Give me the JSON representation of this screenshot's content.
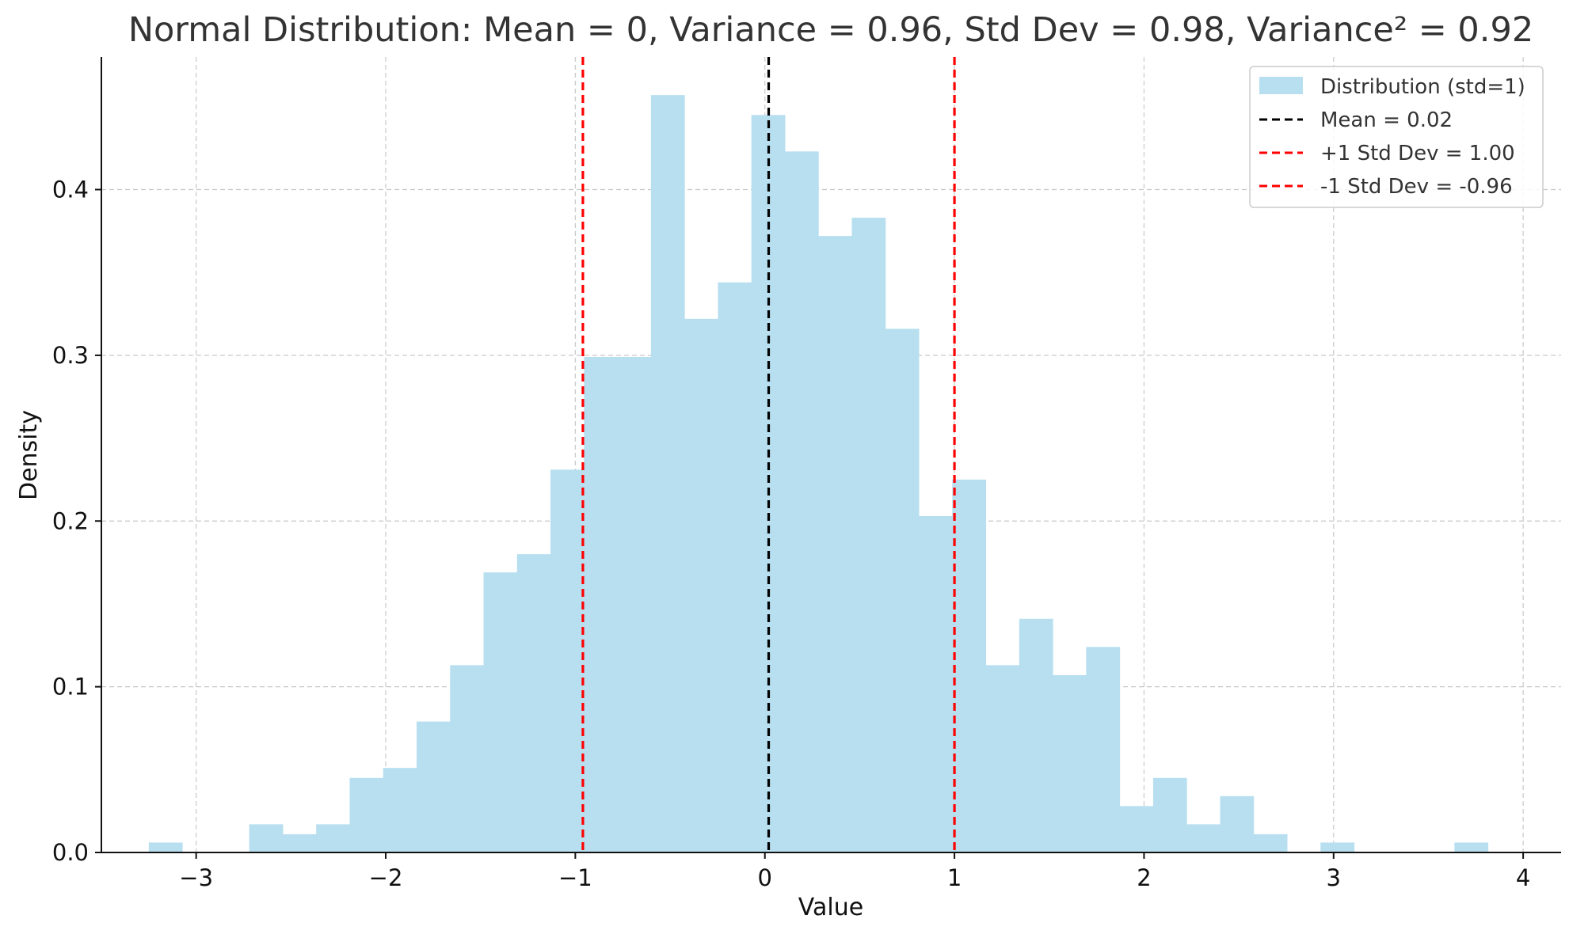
{
  "chart_data": {
    "type": "bar",
    "title": "Normal Distribution: Mean = 0, Variance = 0.96, Std Dev = 0.98, Variance² = 0.92",
    "xlabel": "Value",
    "ylabel": "Density",
    "xlim": [
      -3.5,
      4.2
    ],
    "ylim": [
      0,
      0.48
    ],
    "grid": true,
    "legend_position": "top-right",
    "x_ticks": [
      {
        "value": -3,
        "label": "−3"
      },
      {
        "value": -2,
        "label": "−2"
      },
      {
        "value": -1,
        "label": "−1"
      },
      {
        "value": 0,
        "label": "0"
      },
      {
        "value": 1,
        "label": "1"
      },
      {
        "value": 2,
        "label": "2"
      },
      {
        "value": 3,
        "label": "3"
      },
      {
        "value": 4,
        "label": "4"
      }
    ],
    "y_ticks": [
      {
        "value": 0.0,
        "label": "0.0"
      },
      {
        "value": 0.1,
        "label": "0.1"
      },
      {
        "value": 0.2,
        "label": "0.2"
      },
      {
        "value": 0.3,
        "label": "0.3"
      },
      {
        "value": 0.4,
        "label": "0.4"
      }
    ],
    "histogram": {
      "name": "Distribution (std=1)",
      "color": "#b7dff0",
      "bin_start": -3.25,
      "bin_width": 0.1766,
      "values": [
        0.006,
        0,
        0,
        0.017,
        0.011,
        0.017,
        0.045,
        0.051,
        0.079,
        0.113,
        0.169,
        0.18,
        0.231,
        0.299,
        0.299,
        0.457,
        0.322,
        0.344,
        0.445,
        0.423,
        0.372,
        0.383,
        0.316,
        0.203,
        0.225,
        0.113,
        0.141,
        0.107,
        0.124,
        0.028,
        0.045,
        0.017,
        0.034,
        0.011,
        0,
        0.006,
        0,
        0,
        0,
        0.006
      ]
    },
    "vlines": [
      {
        "name": "Mean = 0.02",
        "x": 0.02,
        "color": "#000000"
      },
      {
        "name": "+1 Std Dev = 1.00",
        "x": 1.0,
        "color": "#ff0000"
      },
      {
        "name": "-1 Std Dev = -0.96",
        "x": -0.96,
        "color": "#ff0000"
      }
    ]
  }
}
